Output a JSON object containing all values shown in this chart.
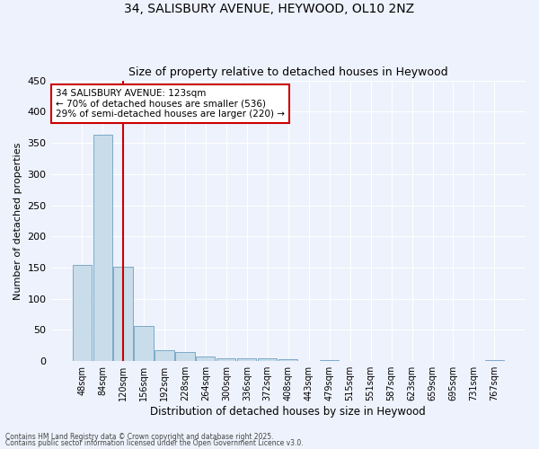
{
  "title": "34, SALISBURY AVENUE, HEYWOOD, OL10 2NZ",
  "subtitle": "Size of property relative to detached houses in Heywood",
  "xlabel": "Distribution of detached houses by size in Heywood",
  "ylabel": "Number of detached properties",
  "categories": [
    "48sqm",
    "84sqm",
    "120sqm",
    "156sqm",
    "192sqm",
    "228sqm",
    "264sqm",
    "300sqm",
    "336sqm",
    "372sqm",
    "408sqm",
    "443sqm",
    "479sqm",
    "515sqm",
    "551sqm",
    "587sqm",
    "623sqm",
    "659sqm",
    "695sqm",
    "731sqm",
    "767sqm"
  ],
  "values": [
    155,
    363,
    152,
    57,
    18,
    14,
    7,
    5,
    5,
    5,
    3,
    0,
    2,
    0,
    0,
    0,
    0,
    0,
    0,
    0,
    2
  ],
  "bar_color": "#c9dcea",
  "bar_edge_color": "#7aaac8",
  "bar_edge_width": 0.7,
  "red_line_index": 2,
  "red_line_color": "#cc0000",
  "annotation_text": "34 SALISBURY AVENUE: 123sqm\n← 70% of detached houses are smaller (536)\n29% of semi-detached houses are larger (220) →",
  "annotation_box_color": "#ffffff",
  "annotation_box_edge": "#cc0000",
  "background_color": "#eef2fc",
  "grid_color": "#ffffff",
  "ylim": [
    0,
    450
  ],
  "yticks": [
    0,
    50,
    100,
    150,
    200,
    250,
    300,
    350,
    400,
    450
  ],
  "footer_line1": "Contains HM Land Registry data © Crown copyright and database right 2025.",
  "footer_line2": "Contains public sector information licensed under the Open Government Licence v3.0."
}
